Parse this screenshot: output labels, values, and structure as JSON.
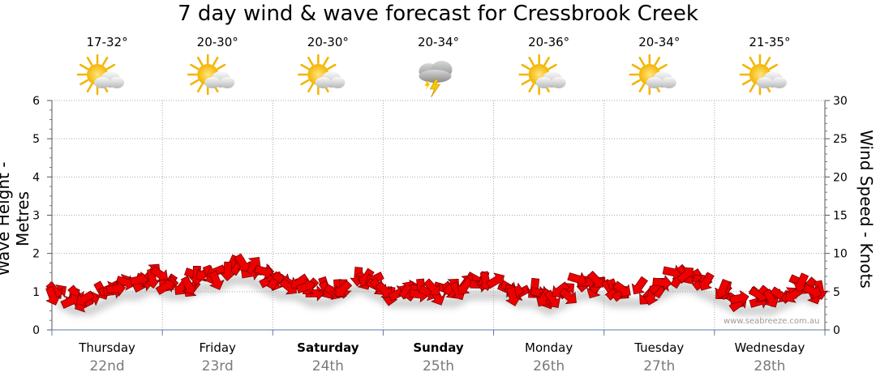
{
  "title": "7 day wind & wave forecast for Cressbrook Creek",
  "y_left_label": "Wave Height - Metres",
  "y_right_label": "Wind Speed - Knots",
  "watermark": "www.seabreeze.com.au",
  "colors": {
    "arrow_fill": "#ee0000",
    "arrow_stroke": "#7a0000",
    "grid": "#aaaaaa",
    "date_text": "#7a7a7a"
  },
  "days": [
    {
      "name": "Thursday",
      "date": "22nd",
      "temp": "17-32°",
      "icon": "partly-cloudy-icon",
      "bold": false
    },
    {
      "name": "Friday",
      "date": "23rd",
      "temp": "20-30°",
      "icon": "partly-cloudy-icon",
      "bold": false
    },
    {
      "name": "Saturday",
      "date": "24th",
      "temp": "20-30°",
      "icon": "partly-cloudy-icon",
      "bold": true
    },
    {
      "name": "Sunday",
      "date": "25th",
      "temp": "20-34°",
      "icon": "thunderstorm-icon",
      "bold": true
    },
    {
      "name": "Monday",
      "date": "26th",
      "temp": "20-36°",
      "icon": "partly-cloudy-icon",
      "bold": false
    },
    {
      "name": "Tuesday",
      "date": "27th",
      "temp": "20-34°",
      "icon": "partly-cloudy-icon",
      "bold": false
    },
    {
      "name": "Wednesday",
      "date": "28th",
      "temp": "21-35°",
      "icon": "partly-cloudy-icon",
      "bold": false
    }
  ],
  "chart_data": {
    "type": "line",
    "title": "7 day wind & wave forecast for Cressbrook Creek",
    "xlabel": "",
    "ylabel": "Wave Height - Metres",
    "y2label": "Wind Speed - Knots",
    "ylim": [
      0,
      6
    ],
    "y2lim": [
      0,
      30
    ],
    "left_ticks": [
      "0",
      "1",
      "2",
      "3",
      "4",
      "5",
      "6"
    ],
    "right_ticks": [
      "0",
      "5",
      "10",
      "15",
      "20",
      "25",
      "30"
    ],
    "grid": true,
    "series": [
      {
        "values": [
          5,
          4,
          4,
          5,
          6,
          6,
          7,
          6,
          6,
          7,
          7,
          8,
          8,
          7,
          6,
          6,
          5,
          5,
          6,
          7,
          6,
          5,
          5,
          5,
          5,
          5,
          6,
          6,
          6,
          5,
          5,
          4,
          5,
          6,
          6,
          5,
          5,
          5,
          6,
          7,
          7,
          6,
          5,
          4,
          4,
          4,
          5,
          6,
          5
        ]
      }
    ]
  }
}
